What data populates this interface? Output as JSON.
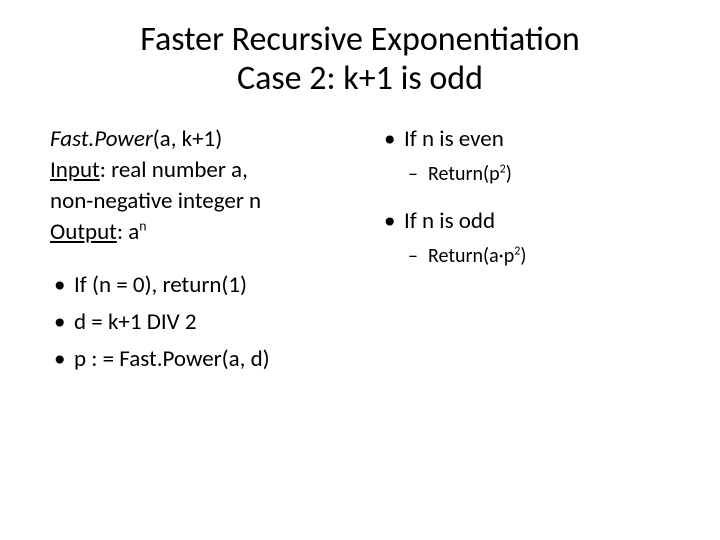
{
  "title_line1": "Faster Recursive Exponentiation",
  "title_line2": "Case 2: k+1 is odd",
  "left": {
    "fn_name": "Fast.Power",
    "fn_args": "(a, k+1)",
    "input_label": "Input",
    "input_text": ": real number a,",
    "input_text2": "non-negative integer  n",
    "output_label": "Output",
    "output_text": ": a",
    "output_exp": "n",
    "b1": "If (n = 0), return(1)",
    "b2": "d = k+1 DIV 2",
    "b3": "p : = Fast.Power(a, d)"
  },
  "right": {
    "even": "If n is even",
    "even_sub_pre": "Return(p",
    "even_sub_exp": "2",
    "even_sub_post": ")",
    "odd": "If n is odd",
    "odd_sub_pre": "Return(a·p",
    "odd_sub_exp": "2",
    "odd_sub_post": ")"
  },
  "style": {
    "bg": "#ffffff",
    "text_color": "#000000",
    "title_fontsize": 34,
    "body_fontsize": 23,
    "sub_fontsize": 20,
    "font_family": "Calibri"
  }
}
